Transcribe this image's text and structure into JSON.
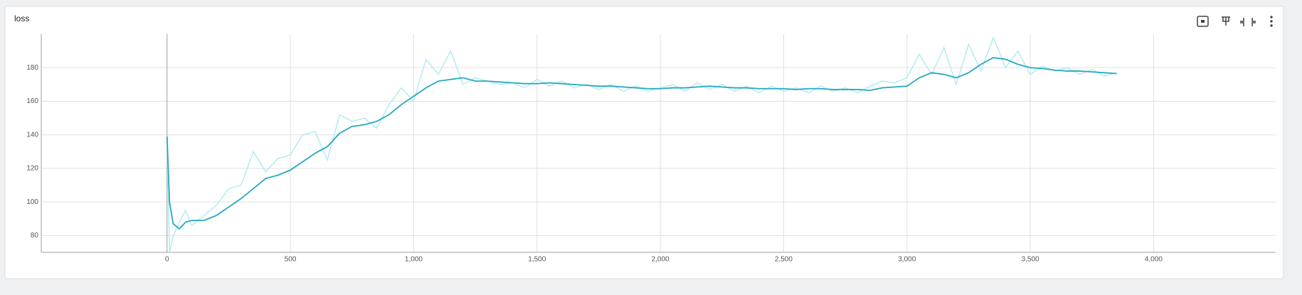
{
  "chart_data": {
    "type": "line",
    "title": "loss",
    "x": [
      0,
      10,
      25,
      50,
      75,
      100,
      150,
      200,
      250,
      300,
      350,
      400,
      450,
      500,
      550,
      600,
      650,
      700,
      750,
      800,
      850,
      900,
      950,
      1000,
      1050,
      1100,
      1150,
      1200,
      1250,
      1300,
      1350,
      1400,
      1450,
      1500,
      1550,
      1600,
      1650,
      1700,
      1750,
      1800,
      1850,
      1900,
      1950,
      2000,
      2050,
      2100,
      2150,
      2200,
      2250,
      2300,
      2350,
      2400,
      2450,
      2500,
      2550,
      2600,
      2650,
      2700,
      2750,
      2800,
      2850,
      2900,
      2950,
      3000,
      3050,
      3100,
      3150,
      3200,
      3250,
      3300,
      3350,
      3400,
      3450,
      3500,
      3550,
      3600,
      3650,
      3700,
      3750,
      3800,
      3850
    ],
    "series": [
      {
        "color": "#b2ebf2",
        "values": [
          139,
          70,
          80,
          88,
          95,
          86,
          92,
          98,
          108,
          110,
          130,
          118,
          126,
          128,
          140,
          142,
          125,
          152,
          148,
          150,
          144,
          158,
          168,
          160,
          185,
          176,
          190,
          170,
          174,
          172,
          170,
          171,
          168,
          173,
          169,
          172,
          168,
          170,
          167,
          170,
          166,
          169,
          166,
          168,
          170,
          166,
          171,
          167,
          170,
          166,
          169,
          165,
          169,
          166,
          168,
          165,
          169,
          166,
          168,
          165,
          169,
          172,
          171,
          174,
          188,
          176,
          192,
          170,
          194,
          178,
          198,
          180,
          190,
          176,
          181,
          178,
          180,
          176,
          179,
          175,
          177
        ]
      },
      {
        "color": "#26a9c0",
        "values": [
          139,
          100,
          87,
          84,
          88,
          89,
          89,
          92,
          97,
          102,
          108,
          114,
          116,
          119,
          124,
          129,
          133,
          141,
          145,
          146,
          148,
          152,
          158,
          163,
          168,
          172,
          173,
          174,
          172,
          172,
          171.5,
          171,
          170.5,
          170.5,
          171,
          170.5,
          170,
          169.5,
          169,
          169,
          168.5,
          168,
          167.5,
          167.5,
          168,
          168,
          168.5,
          169,
          168.5,
          168,
          168,
          167.5,
          167.5,
          167.5,
          167,
          167.5,
          167.5,
          167,
          167,
          167,
          166.5,
          168,
          168.5,
          169,
          174,
          177,
          176,
          174,
          177,
          182,
          186,
          185,
          182,
          180,
          179.5,
          178.5,
          178,
          178,
          177.5,
          177,
          176.5
        ]
      }
    ],
    "xlim": [
      -510,
      4495
    ],
    "ylim": [
      70,
      200
    ],
    "xticks": [
      0,
      500,
      {
        "value": 1000,
        "label": "1,000"
      },
      {
        "value": 1500,
        "label": "1,500"
      },
      {
        "value": 2000,
        "label": "2,000"
      },
      {
        "value": 2500,
        "label": "2,500"
      },
      {
        "value": 3000,
        "label": "3,000"
      },
      {
        "value": 3500,
        "label": "3,500"
      },
      {
        "value": 4000,
        "label": "4,000"
      }
    ],
    "yticks": [
      80,
      100,
      120,
      140,
      160,
      180
    ],
    "grid": true
  }
}
